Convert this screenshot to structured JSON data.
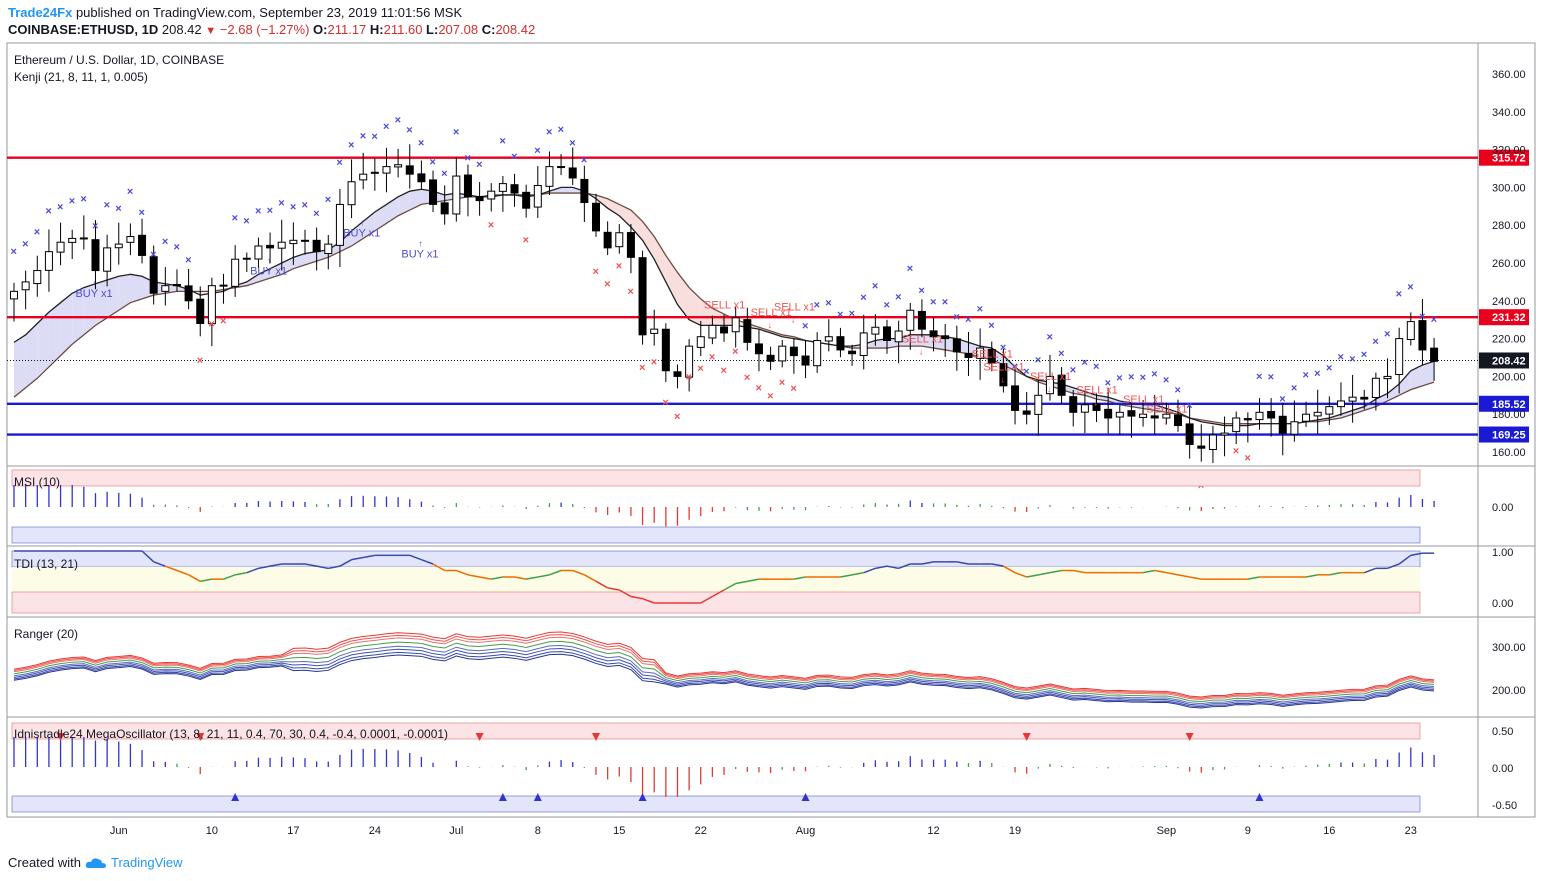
{
  "header": {
    "brand": "Trade24Fx",
    "published_text": "published on TradingView.com, September 23, 2019 11:01:56 MSK",
    "symbol": "COINBASE:ETHUSD, 1D",
    "last": "208.42",
    "change": "−2.68 (−1.27%)",
    "o_label": "O:",
    "o": "211.17",
    "h_label": "H:",
    "h": "211.60",
    "l_label": "L:",
    "l": "207.08",
    "c_label": "C:",
    "c": "208.42"
  },
  "main_pane": {
    "title": "Ethereum / U.S. Dollar, 1D, COINBASE",
    "indicator": "Kenji (21, 8, 11, 1, 0.005)"
  },
  "price_levels": [
    {
      "label": "315.72",
      "value": 315.72,
      "color": "#e8001c"
    },
    {
      "label": "231.32",
      "value": 231.32,
      "color": "#e8001c"
    },
    {
      "label": "208.42",
      "value": 208.42,
      "color": "#131722"
    },
    {
      "label": "185.52",
      "value": 185.52,
      "color": "#1a1ad4"
    },
    {
      "label": "169.25",
      "value": 169.25,
      "color": "#1a1ad4"
    }
  ],
  "signals": [
    {
      "label": "BUY x1",
      "index": 22,
      "value": 254,
      "side": "buy"
    },
    {
      "label": "BUY x1",
      "index": 30,
      "value": 274,
      "side": "buy"
    },
    {
      "label": "BUY x1",
      "index": 7,
      "value": 242,
      "side": "buy"
    },
    {
      "label": "BUY x1",
      "index": 35,
      "value": 263,
      "side": "buy"
    },
    {
      "label": "SELL x1",
      "index": 61,
      "value": 236,
      "side": "sell"
    },
    {
      "label": "SELL x1",
      "index": 65,
      "value": 232,
      "side": "sell"
    },
    {
      "label": "SELL x1",
      "index": 67,
      "value": 235,
      "side": "sell"
    },
    {
      "label": "SELL x1",
      "index": 78,
      "value": 218,
      "side": "sell"
    },
    {
      "label": "SELL x1",
      "index": 84,
      "value": 210,
      "side": "sell"
    },
    {
      "label": "SELL x1",
      "index": 85,
      "value": 203,
      "side": "sell"
    },
    {
      "label": "SELL x1",
      "index": 89,
      "value": 198,
      "side": "sell"
    },
    {
      "label": "SELL x1",
      "index": 93,
      "value": 191,
      "side": "sell"
    },
    {
      "label": "SELL x1",
      "index": 97,
      "value": 186,
      "side": "sell"
    },
    {
      "label": "SELL x1",
      "index": 99,
      "value": 181,
      "side": "sell"
    }
  ],
  "x_axis": {
    "ticks": [
      {
        "label": "Jun",
        "index": 9
      },
      {
        "label": "10",
        "index": 17
      },
      {
        "label": "17",
        "index": 24
      },
      {
        "label": "24",
        "index": 31
      },
      {
        "label": "Jul",
        "index": 38
      },
      {
        "label": "8",
        "index": 45
      },
      {
        "label": "15",
        "index": 52
      },
      {
        "label": "22",
        "index": 59
      },
      {
        "label": "Aug",
        "index": 68
      },
      {
        "label": "12",
        "index": 79
      },
      {
        "label": "19",
        "index": 86
      },
      {
        "label": "Sep",
        "index": 99
      },
      {
        "label": "9",
        "index": 106
      },
      {
        "label": "16",
        "index": 113
      },
      {
        "label": "23",
        "index": 120
      }
    ]
  },
  "sub_panes": [
    {
      "title": "MSI (10)",
      "ticks": [
        "0.00"
      ]
    },
    {
      "title": "TDI (13, 21)",
      "ticks": [
        "1.00",
        "0.00"
      ]
    },
    {
      "title": "Ranger (20)",
      "ticks": [
        "300.00",
        "200.00"
      ]
    },
    {
      "title": "Idnisrtadle24 MegaOscillator (13, 8, 21, 11, 0.4, 70, 30, 0.4, -0.4, 0.0001, -0.0001)",
      "ticks": [
        "0.50",
        "0.00",
        "-0.50"
      ]
    }
  ],
  "footer": {
    "created_with": "Created with",
    "tradingview": "TradingView"
  },
  "chart_data": {
    "type": "candlestick",
    "title": "Ethereum / U.S. Dollar, 1D, COINBASE",
    "period": "2019-05-23 to 2019-09-23",
    "y_ticks": [
      "360.00",
      "340.00",
      "320.00",
      "300.00",
      "280.00",
      "260.00",
      "240.00",
      "220.00",
      "200.00",
      "180.00",
      "160.00"
    ],
    "ylim": [
      150,
      367
    ],
    "close": [
      245,
      250,
      256,
      266,
      271,
      273,
      273,
      256,
      268,
      270,
      274,
      264,
      244,
      248,
      248,
      240,
      228,
      248,
      248,
      262,
      262,
      269,
      268,
      271,
      272,
      272,
      266,
      270,
      291,
      303,
      307,
      308,
      311,
      312,
      307,
      303,
      291,
      286,
      306,
      295,
      293,
      298,
      302,
      297,
      289,
      301,
      311,
      311,
      305,
      292,
      277,
      268,
      276,
      263,
      222,
      225,
      203,
      200,
      216,
      221,
      227,
      223,
      231,
      218,
      212,
      208,
      216,
      211,
      206,
      219,
      221,
      214,
      212,
      223,
      226,
      219,
      224,
      235,
      225,
      221,
      220,
      213,
      210,
      215,
      207,
      195,
      182,
      180,
      190,
      200,
      190,
      181,
      185,
      182,
      178,
      181,
      179,
      180,
      178,
      180,
      174,
      164,
      162,
      169,
      170,
      178,
      177,
      181,
      178,
      170,
      176,
      180,
      181,
      184,
      187,
      189,
      188,
      199,
      200,
      220,
      229,
      214,
      208
    ],
    "kenji_fast": [
      218,
      222,
      228,
      234,
      239,
      244,
      247,
      249,
      251,
      253,
      254,
      253,
      250,
      249,
      248,
      246,
      243,
      244,
      245,
      248,
      250,
      254,
      257,
      260,
      263,
      265,
      266,
      267,
      271,
      277,
      282,
      287,
      291,
      295,
      298,
      299,
      298,
      296,
      297,
      296,
      295,
      295,
      296,
      296,
      295,
      296,
      298,
      300,
      300,
      298,
      294,
      289,
      285,
      279,
      272,
      262,
      250,
      238,
      230,
      227,
      227,
      227,
      227,
      226,
      225,
      223,
      221,
      220,
      219,
      218,
      217,
      216,
      216,
      217,
      219,
      220,
      220,
      222,
      222,
      222,
      221,
      220,
      218,
      216,
      215,
      211,
      205,
      200,
      198,
      197,
      196,
      194,
      192,
      190,
      189,
      187,
      186,
      185,
      185,
      183,
      181,
      178,
      176,
      175,
      174,
      174,
      174,
      175,
      175,
      175,
      175,
      176,
      177,
      178,
      180,
      182,
      184,
      188,
      191,
      196,
      203,
      206,
      208
    ],
    "kenji_slow": [
      189,
      194,
      199,
      205,
      211,
      217,
      222,
      227,
      231,
      235,
      239,
      241,
      243,
      244,
      245,
      245,
      245,
      245,
      246,
      247,
      248,
      250,
      252,
      254,
      257,
      259,
      261,
      263,
      266,
      269,
      273,
      277,
      281,
      285,
      288,
      291,
      292,
      293,
      294,
      295,
      295,
      296,
      296,
      296,
      296,
      296,
      297,
      297,
      297,
      297,
      296,
      294,
      291,
      288,
      282,
      274,
      264,
      255,
      247,
      241,
      236,
      233,
      230,
      228,
      226,
      224,
      222,
      221,
      219,
      218,
      217,
      216,
      215,
      215,
      215,
      215,
      216,
      216,
      216,
      215,
      214,
      213,
      212,
      210,
      209,
      206,
      203,
      200,
      197,
      195,
      193,
      191,
      190,
      188,
      187,
      185,
      184,
      183,
      182,
      181,
      180,
      178,
      177,
      176,
      175,
      175,
      175,
      175,
      175,
      175,
      175,
      176,
      176,
      177,
      178,
      180,
      182,
      184,
      187,
      190,
      193,
      195,
      197
    ]
  }
}
